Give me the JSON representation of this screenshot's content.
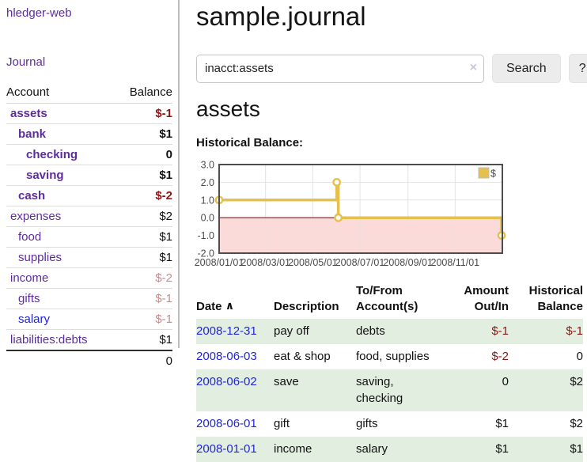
{
  "brand": "hledger-web",
  "nav": {
    "journal_label": "Journal"
  },
  "sidebar": {
    "header": {
      "account": "Account",
      "balance": "Balance"
    },
    "accounts": [
      {
        "name": "assets",
        "depth": 1,
        "bold": true,
        "balance": "$-1",
        "neg": "strong"
      },
      {
        "name": "bank",
        "depth": 2,
        "bold": true,
        "balance": "$1",
        "neg": "none"
      },
      {
        "name": "checking",
        "depth": 3,
        "bold": true,
        "balance": "0",
        "neg": "none"
      },
      {
        "name": "saving",
        "depth": 3,
        "bold": true,
        "balance": "$1",
        "neg": "none"
      },
      {
        "name": "cash",
        "depth": 2,
        "bold": true,
        "balance": "$-2",
        "neg": "strong"
      },
      {
        "name": "expenses",
        "depth": 1,
        "bold": false,
        "balance": "$2",
        "neg": "none"
      },
      {
        "name": "food",
        "depth": 2,
        "bold": false,
        "balance": "$1",
        "neg": "none"
      },
      {
        "name": "supplies",
        "depth": 2,
        "bold": false,
        "balance": "$1",
        "neg": "none"
      },
      {
        "name": "income",
        "depth": 1,
        "bold": false,
        "balance": "$-2",
        "neg": "soft"
      },
      {
        "name": "gifts",
        "depth": 2,
        "bold": false,
        "balance": "$-1",
        "neg": "soft"
      },
      {
        "name": "salary",
        "depth": 2,
        "bold": false,
        "balance": "$-1",
        "neg": "soft",
        "link_blue": true
      },
      {
        "name": "liabilities:debts",
        "depth": 1,
        "bold": false,
        "balance": "$1",
        "neg": "none"
      }
    ],
    "total": "0"
  },
  "main": {
    "title": "sample.journal",
    "search": {
      "value": "inacct:assets",
      "clear_icon": "×",
      "button_label": "Search",
      "help_label": "?"
    },
    "account_title": "assets",
    "chart_heading": "Historical Balance:"
  },
  "chart_data": {
    "type": "line",
    "title": "Historical Balance",
    "style": "steps",
    "series": [
      {
        "name": "$",
        "points": [
          {
            "date": "2008-01-01",
            "day": 0,
            "value": 1
          },
          {
            "date": "2008-06-01",
            "day": 152,
            "value": 2
          },
          {
            "date": "2008-06-03",
            "day": 154,
            "value": 0
          },
          {
            "date": "2008-12-31",
            "day": 365,
            "value": -1
          }
        ]
      }
    ],
    "x_range_days": [
      0,
      366
    ],
    "x_ticks": [
      {
        "day": 0,
        "label": "2008/01/01"
      },
      {
        "day": 60,
        "label": "2008/03/01"
      },
      {
        "day": 121,
        "label": "2008/05/01"
      },
      {
        "day": 182,
        "label": "2008/07/01"
      },
      {
        "day": 244,
        "label": "2008/09/01"
      },
      {
        "day": 305,
        "label": "2008/11/01"
      }
    ],
    "ylim": [
      -2,
      3
    ],
    "y_ticks": [
      3.0,
      2.0,
      1.0,
      0.0,
      -1.0,
      -2.0
    ],
    "grid": true,
    "legend": {
      "label": "$",
      "position": "top-right"
    },
    "colors": {
      "series": "#e6c04c",
      "marker_fill": "#ffffff",
      "negative_region": "#fbdada",
      "zero_line": "#8f1212",
      "grid": "#e3e3e3",
      "border": "#4d4d4d"
    }
  },
  "register": {
    "columns": [
      "Date",
      "Description",
      "To/From\nAccount(s)",
      "Amount\nOut/In",
      "Historical\nBalance"
    ],
    "sort_icon": "∧",
    "rows": [
      {
        "date": "2008-12-31",
        "description": "pay off",
        "accounts": "debts",
        "amount": "$-1",
        "amount_neg": true,
        "balance": "$-1",
        "balance_neg": true
      },
      {
        "date": "2008-06-03",
        "description": "eat & shop",
        "accounts": "food, supplies",
        "amount": "$-2",
        "amount_neg": true,
        "balance": "0",
        "balance_neg": false
      },
      {
        "date": "2008-06-02",
        "description": "save",
        "accounts": "saving,\nchecking",
        "amount": "0",
        "amount_neg": false,
        "balance": "$2",
        "balance_neg": false
      },
      {
        "date": "2008-06-01",
        "description": "gift",
        "accounts": "gifts",
        "amount": "$1",
        "amount_neg": false,
        "balance": "$2",
        "balance_neg": false
      },
      {
        "date": "2008-01-01",
        "description": "income",
        "accounts": "salary",
        "amount": "$1",
        "amount_neg": false,
        "balance": "$1",
        "balance_neg": false
      }
    ]
  }
}
